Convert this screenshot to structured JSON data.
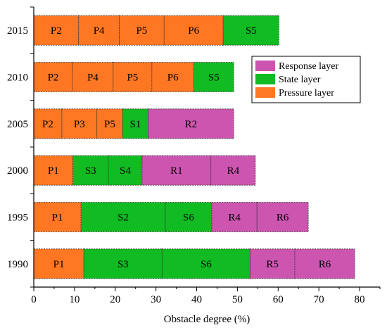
{
  "chart_data": {
    "type": "bar",
    "orientation": "horizontal",
    "stacked": true,
    "xlabel": "Obstacle degree (%)",
    "ylabel": "",
    "xlim": [
      0,
      85
    ],
    "xticks": [
      0,
      10,
      20,
      30,
      40,
      50,
      60,
      70,
      80
    ],
    "categories": [
      "2015",
      "2010",
      "2005",
      "2000",
      "1995",
      "1990"
    ],
    "layers": [
      {
        "name": "Response layer",
        "color": "#cc55b0"
      },
      {
        "name": "State layer",
        "color": "#11bb22"
      },
      {
        "name": "Pressure layer",
        "color": "#ff7722"
      }
    ],
    "legend_position": "upper-right",
    "bars": [
      {
        "category": "2015",
        "segments": [
          {
            "label": "P2",
            "value": 11,
            "layer": "Pressure layer"
          },
          {
            "label": "P4",
            "value": 10,
            "layer": "Pressure layer"
          },
          {
            "label": "P5",
            "value": 11,
            "layer": "Pressure layer"
          },
          {
            "label": "P6",
            "value": 14.5,
            "layer": "Pressure layer"
          },
          {
            "label": "S5",
            "value": 13.7,
            "layer": "State layer"
          }
        ]
      },
      {
        "category": "2010",
        "segments": [
          {
            "label": "P2",
            "value": 9.5,
            "layer": "Pressure layer"
          },
          {
            "label": "P4",
            "value": 10,
            "layer": "Pressure layer"
          },
          {
            "label": "P5",
            "value": 9.5,
            "layer": "Pressure layer"
          },
          {
            "label": "P6",
            "value": 10.3,
            "layer": "Pressure layer"
          },
          {
            "label": "S5",
            "value": 9.8,
            "layer": "State layer"
          }
        ]
      },
      {
        "category": "2005",
        "segments": [
          {
            "label": "P2",
            "value": 6.9,
            "layer": "Pressure layer"
          },
          {
            "label": "P3",
            "value": 8.6,
            "layer": "Pressure layer"
          },
          {
            "label": "P5",
            "value": 6.3,
            "layer": "Pressure layer"
          },
          {
            "label": "S1",
            "value": 6.3,
            "layer": "State layer"
          },
          {
            "label": "R2",
            "value": 21,
            "layer": "Response layer"
          }
        ]
      },
      {
        "category": "2000",
        "segments": [
          {
            "label": "P1",
            "value": 9.6,
            "layer": "Pressure layer"
          },
          {
            "label": "S3",
            "value": 8.7,
            "layer": "State layer"
          },
          {
            "label": "S4",
            "value": 8.3,
            "layer": "State layer"
          },
          {
            "label": "R1",
            "value": 16.9,
            "layer": "Response layer"
          },
          {
            "label": "R4",
            "value": 10.9,
            "layer": "Response layer"
          }
        ]
      },
      {
        "category": "1995",
        "segments": [
          {
            "label": "P1",
            "value": 11.6,
            "layer": "Pressure layer"
          },
          {
            "label": "S2",
            "value": 20.7,
            "layer": "State layer"
          },
          {
            "label": "S6",
            "value": 11.4,
            "layer": "State layer"
          },
          {
            "label": "R4",
            "value": 11.1,
            "layer": "Response layer"
          },
          {
            "label": "R6",
            "value": 12.6,
            "layer": "Response layer"
          }
        ]
      },
      {
        "category": "1990",
        "segments": [
          {
            "label": "P1",
            "value": 12.3,
            "layer": "Pressure layer"
          },
          {
            "label": "S3",
            "value": 19.2,
            "layer": "State layer"
          },
          {
            "label": "S6",
            "value": 21.6,
            "layer": "State layer"
          },
          {
            "label": "R5",
            "value": 11,
            "layer": "Response layer"
          },
          {
            "label": "R6",
            "value": 14.7,
            "layer": "Response layer"
          }
        ]
      }
    ]
  }
}
